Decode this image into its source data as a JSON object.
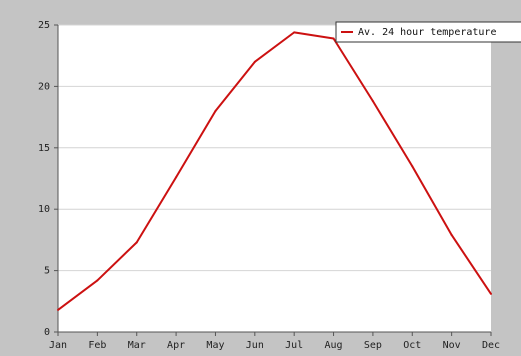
{
  "chart_data": {
    "type": "line",
    "categories": [
      "Jan",
      "Feb",
      "Mar",
      "Apr",
      "May",
      "Jun",
      "Jul",
      "Aug",
      "Sep",
      "Oct",
      "Nov",
      "Dec"
    ],
    "series": [
      {
        "name": "Av. 24 hour temperature",
        "values": [
          1.8,
          4.2,
          7.3,
          12.6,
          18.0,
          22.0,
          24.4,
          23.9,
          18.8,
          13.5,
          7.9,
          3.1
        ],
        "color": "#cc1111"
      }
    ],
    "yticks": [
      "0",
      "5",
      "10",
      "15",
      "20",
      "25"
    ],
    "ylim": [
      0,
      25
    ],
    "grid": true,
    "legend": "top-right",
    "title": "",
    "xlabel": "",
    "ylabel": ""
  }
}
